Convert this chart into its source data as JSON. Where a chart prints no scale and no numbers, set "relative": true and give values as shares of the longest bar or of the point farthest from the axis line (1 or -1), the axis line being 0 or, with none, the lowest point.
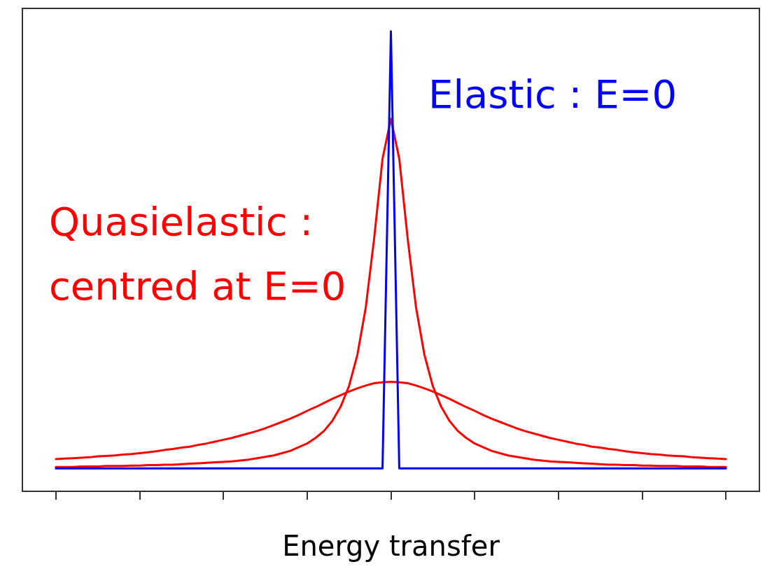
{
  "chart_data": {
    "type": "line",
    "relative": true,
    "xlabel": "Energy transfer",
    "marker": "none",
    "line_style": "solid",
    "grid": false,
    "legend": false,
    "categories": [
      null,
      null,
      null,
      null,
      null,
      null,
      null,
      null,
      null,
      null,
      null,
      null,
      null,
      null,
      null,
      null,
      null,
      null,
      null,
      null,
      null,
      null,
      null,
      null,
      null,
      null,
      null,
      null,
      null,
      null,
      null,
      null,
      null,
      null,
      null,
      null,
      null,
      null,
      null,
      null,
      null,
      null,
      null,
      null,
      null,
      null,
      null,
      null,
      null,
      null,
      null,
      null,
      null,
      null,
      null,
      null,
      null,
      null,
      null,
      null,
      null,
      null,
      null,
      null,
      null,
      null,
      null,
      null,
      null,
      null,
      null,
      null,
      null,
      null,
      null,
      null,
      null,
      null,
      null,
      null,
      null
    ],
    "series": [
      {
        "name": "Elastic : E=0",
        "color": "#0000ff",
        "values": [
          0.05,
          0.05,
          0.05,
          0.05,
          0.05,
          0.05,
          0.05,
          0.05,
          0.05,
          0.05,
          0.05,
          0.05,
          0.05,
          0.05,
          0.05,
          0.05,
          0.05,
          0.05,
          0.05,
          0.05,
          0.05,
          0.05,
          0.05,
          0.05,
          0.05,
          0.05,
          0.05,
          0.05,
          0.05,
          0.05,
          0.05,
          0.05,
          0.05,
          0.05,
          0.05,
          0.05,
          0.05,
          0.05,
          0.05,
          0.05,
          1.0,
          0.05,
          0.05,
          0.05,
          0.05,
          0.05,
          0.05,
          0.05,
          0.05,
          0.05,
          0.05,
          0.05,
          0.05,
          0.05,
          0.05,
          0.05,
          0.05,
          0.05,
          0.05,
          0.05,
          0.05,
          0.05,
          0.05,
          0.05,
          0.05,
          0.05,
          0.05,
          0.05,
          0.05,
          0.05,
          0.05,
          0.05,
          0.05,
          0.05,
          0.05,
          0.05,
          0.05,
          0.05,
          0.05,
          0.05,
          0.05
        ]
      },
      {
        "color": "#ff0000",
        "values": [
          0.053,
          0.053,
          0.053,
          0.054,
          0.054,
          0.054,
          0.055,
          0.055,
          0.055,
          0.056,
          0.056,
          0.057,
          0.057,
          0.058,
          0.058,
          0.059,
          0.06,
          0.061,
          0.062,
          0.063,
          0.064,
          0.065,
          0.067,
          0.069,
          0.072,
          0.075,
          0.078,
          0.083,
          0.088,
          0.096,
          0.104,
          0.116,
          0.131,
          0.153,
          0.184,
          0.229,
          0.297,
          0.4,
          0.55,
          0.723,
          0.81,
          0.723,
          0.55,
          0.4,
          0.297,
          0.229,
          0.184,
          0.153,
          0.131,
          0.116,
          0.104,
          0.096,
          0.088,
          0.083,
          0.078,
          0.075,
          0.072,
          0.069,
          0.067,
          0.065,
          0.064,
          0.063,
          0.062,
          0.061,
          0.06,
          0.059,
          0.058,
          0.058,
          0.057,
          0.057,
          0.056,
          0.056,
          0.055,
          0.055,
          0.055,
          0.054,
          0.054,
          0.054,
          0.053,
          0.053,
          0.053
        ]
      },
      {
        "color": "#ff0000",
        "values": [
          0.07,
          0.071,
          0.072,
          0.073,
          0.074,
          0.076,
          0.077,
          0.078,
          0.08,
          0.081,
          0.083,
          0.085,
          0.087,
          0.09,
          0.092,
          0.095,
          0.097,
          0.101,
          0.104,
          0.108,
          0.112,
          0.116,
          0.121,
          0.126,
          0.131,
          0.137,
          0.144,
          0.151,
          0.158,
          0.166,
          0.175,
          0.183,
          0.192,
          0.201,
          0.209,
          0.217,
          0.224,
          0.23,
          0.235,
          0.237,
          0.238,
          0.237,
          0.235,
          0.23,
          0.224,
          0.217,
          0.209,
          0.201,
          0.192,
          0.183,
          0.175,
          0.166,
          0.158,
          0.151,
          0.144,
          0.137,
          0.131,
          0.126,
          0.121,
          0.116,
          0.112,
          0.108,
          0.104,
          0.101,
          0.097,
          0.095,
          0.092,
          0.09,
          0.087,
          0.085,
          0.083,
          0.081,
          0.08,
          0.078,
          0.077,
          0.076,
          0.074,
          0.073,
          0.072,
          0.071,
          0.07
        ]
      }
    ],
    "annotations": [
      "Quasielastic : centred at E=0"
    ]
  }
}
